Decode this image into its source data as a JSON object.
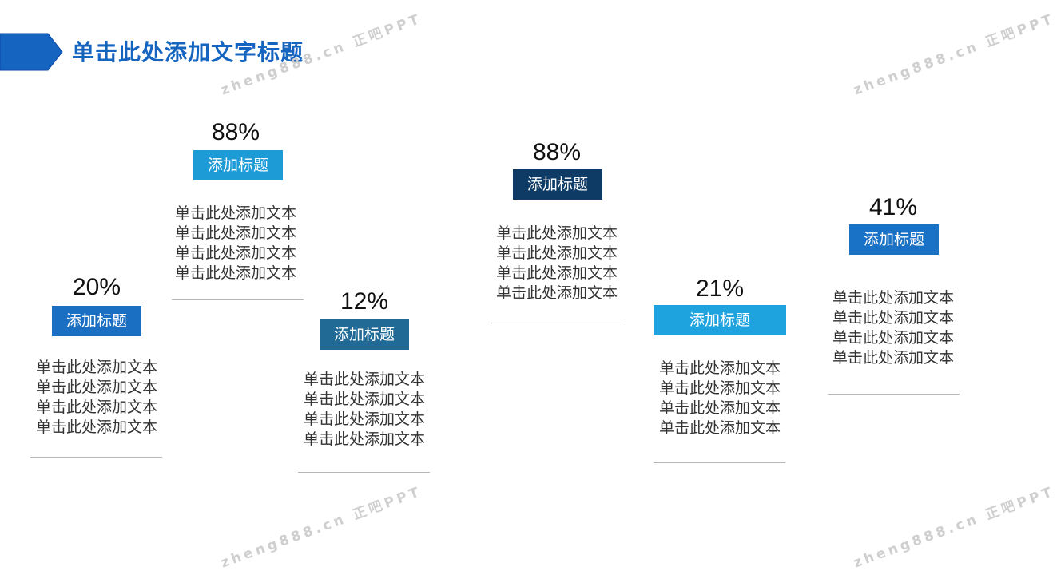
{
  "slide": {
    "title": "单击此处添加文字标题"
  },
  "watermarks": [
    "zheng888.cn 正吧PPT",
    "zheng888.cn 正吧PPT",
    "zheng888.cn 正吧PPT",
    "zheng888.cn 正吧PPT"
  ],
  "colors": {
    "title": "#1565c0",
    "arrow": "#1565c0",
    "rule": "#b7b7b7"
  },
  "cards": [
    {
      "percent": "20%",
      "label": "添加标题",
      "color": "#1a6fc2",
      "lines": [
        "单击此处添加文本",
        "单击此处添加文本",
        "单击此处添加文本",
        "单击此处添加文本"
      ]
    },
    {
      "percent": "88%",
      "label": "添加标题",
      "color": "#1c9bd6",
      "lines": [
        "单击此处添加文本",
        "单击此处添加文本",
        "单击此处添加文本",
        "单击此处添加文本"
      ]
    },
    {
      "percent": "12%",
      "label": "添加标题",
      "color": "#216a96",
      "lines": [
        "单击此处添加文本",
        "单击此处添加文本",
        "单击此处添加文本",
        "单击此处添加文本"
      ]
    },
    {
      "percent": "88%",
      "label": "添加标题",
      "color": "#0d3b66",
      "lines": [
        "单击此处添加文本",
        "单击此处添加文本",
        "单击此处添加文本",
        "单击此处添加文本"
      ]
    },
    {
      "percent": "21%",
      "label": "添加标题",
      "color": "#1fa3df",
      "lines": [
        "单击此处添加文本",
        "单击此处添加文本",
        "单击此处添加文本",
        "单击此处添加文本"
      ]
    },
    {
      "percent": "41%",
      "label": "添加标题",
      "color": "#1a72c6",
      "lines": [
        "单击此处添加文本",
        "单击此处添加文本",
        "单击此处添加文本",
        "单击此处添加文本"
      ]
    }
  ]
}
